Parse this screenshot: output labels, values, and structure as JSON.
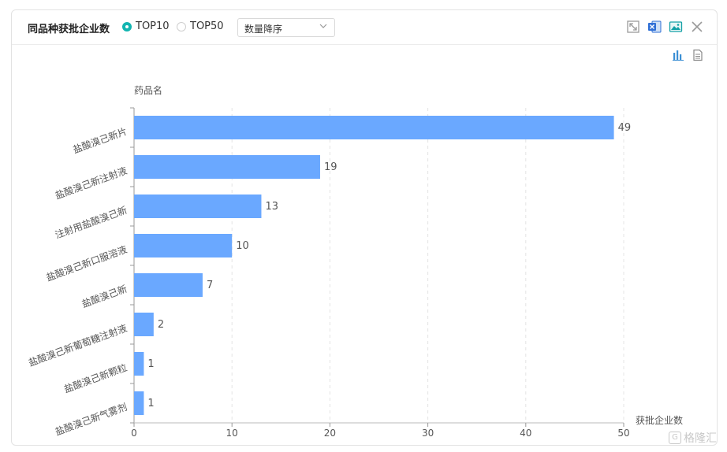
{
  "header": {
    "title": "同品种获批企业数",
    "radio_top10": "TOP10",
    "radio_top50": "TOP50",
    "sort_select_value": "数量降序"
  },
  "icons": {
    "expand": "expand-icon",
    "excel": "excel-export-icon",
    "image": "image-export-icon",
    "close": "close-icon",
    "bar_chart_view": "bar-chart-view-icon",
    "table_view": "table-view-icon"
  },
  "colors": {
    "bar": "#6aa8ff",
    "accent": "#13b5b1"
  },
  "watermark": "格隆汇",
  "chart_data": {
    "type": "bar",
    "orientation": "horizontal",
    "categories": [
      "盐酸溴己新片",
      "盐酸溴己新注射液",
      "注射用盐酸溴己新",
      "盐酸溴己新口服溶液",
      "盐酸溴己新",
      "盐酸溴己新葡萄糖注射液",
      "盐酸溴己新颗粒",
      "盐酸溴己新气雾剂"
    ],
    "values": [
      49,
      19,
      13,
      10,
      7,
      2,
      1,
      1
    ],
    "ylabel": "药品名",
    "xlabel": "获批企业数",
    "xlim": [
      0,
      50
    ],
    "xticks": [
      0,
      10,
      20,
      30,
      40,
      50
    ],
    "grid": "vertical-dashed",
    "data_labels": true
  }
}
